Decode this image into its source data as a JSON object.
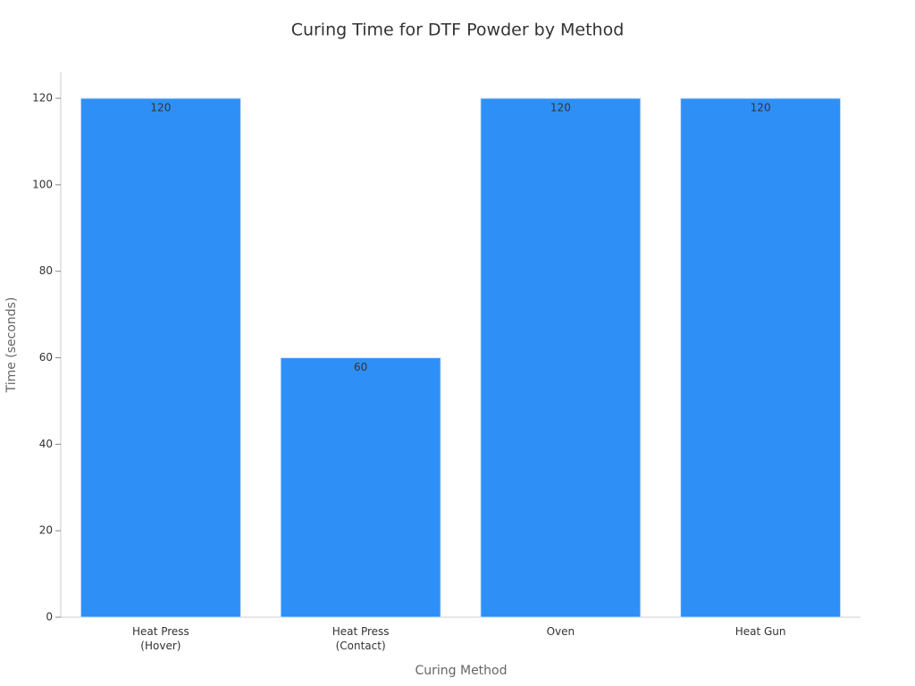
{
  "chart_data": {
    "type": "bar",
    "title": "Curing Time for DTF Powder by Method",
    "x_label": "Curing Method",
    "y_label": "Time (seconds)",
    "categories": [
      "Heat Press\n(Hover)",
      "Heat Press\n(Contact)",
      "Oven",
      "Heat Gun"
    ],
    "values": [
      120,
      60,
      120,
      120
    ],
    "color": "#2e90f7",
    "ylim": [
      0,
      126
    ],
    "yticks": [
      0,
      20,
      40,
      60,
      80,
      100,
      120
    ],
    "grid": false
  }
}
